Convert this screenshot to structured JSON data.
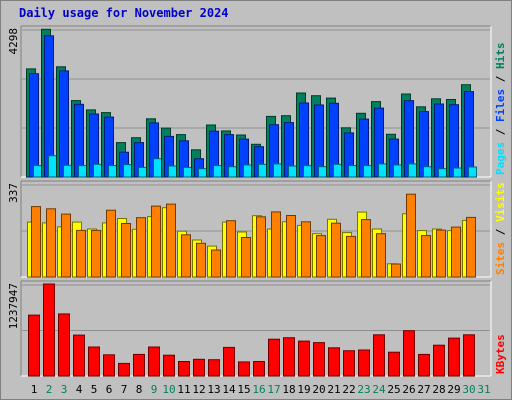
{
  "title": "Daily usage for November 2024",
  "colors": {
    "background": "#c0c0c0",
    "plot_bg": "#c0c0c0",
    "hits": "#00805c",
    "files": "#0040ff",
    "pages": "#00e0ff",
    "visits": "#ffff00",
    "sites": "#ff8000",
    "kbytes": "#ff0000",
    "weekend": "#00805c",
    "weekday": "#000000"
  },
  "x_labels": [
    "1",
    "2",
    "3",
    "4",
    "5",
    "6",
    "7",
    "8",
    "9",
    "10",
    "11",
    "12",
    "13",
    "14",
    "15",
    "16",
    "17",
    "18",
    "19",
    "20",
    "21",
    "22",
    "23",
    "24",
    "25",
    "26",
    "27",
    "28",
    "29",
    "30"
  ],
  "weekend_days": [
    2,
    3,
    9,
    10,
    16,
    17,
    23,
    24,
    30
  ],
  "extra_axis_label": "31",
  "chart_data": [
    {
      "type": "bar",
      "name": "hits-files-pages",
      "ymax": 4298,
      "ymax_label": "4298",
      "legend": [
        "Pages",
        "Files",
        "Hits"
      ],
      "legend_separator": " / ",
      "series": [
        {
          "name": "Hits",
          "values": [
            3140,
            4290,
            3200,
            2220,
            1950,
            1870,
            1000,
            1140,
            1690,
            1420,
            1230,
            790,
            1510,
            1340,
            1220,
            950,
            1760,
            1780,
            2440,
            2360,
            2290,
            1430,
            1850,
            2190,
            1240,
            2410,
            2040,
            2270,
            2250,
            2680
          ]
        },
        {
          "name": "Files",
          "values": [
            3000,
            4100,
            3080,
            2110,
            1830,
            1740,
            720,
            1000,
            1570,
            1180,
            1050,
            530,
            1330,
            1230,
            1100,
            880,
            1520,
            1580,
            2150,
            2090,
            2140,
            1280,
            1680,
            2000,
            1100,
            2220,
            1900,
            2120,
            2100,
            2480
          ]
        },
        {
          "name": "Pages",
          "values": [
            330,
            620,
            340,
            330,
            370,
            330,
            360,
            280,
            530,
            320,
            280,
            240,
            330,
            300,
            350,
            370,
            380,
            320,
            330,
            300,
            370,
            330,
            330,
            380,
            350,
            380,
            300,
            240,
            260,
            290
          ]
        }
      ]
    },
    {
      "type": "bar",
      "name": "visits-sites",
      "ymax": 337,
      "ymax_label": "337",
      "legend": [
        "Sites",
        "Visits"
      ],
      "legend_separator": " / ",
      "series": [
        {
          "name": "Visits",
          "values": [
            199,
            196,
            182,
            199,
            174,
            196,
            212,
            173,
            219,
            251,
            166,
            134,
            112,
            199,
            163,
            222,
            174,
            200,
            187,
            157,
            209,
            161,
            235,
            174,
            48,
            229,
            168,
            174,
            168,
            205
          ]
        },
        {
          "name": "Sites",
          "values": [
            255,
            247,
            228,
            169,
            169,
            242,
            194,
            215,
            257,
            264,
            153,
            122,
            98,
            204,
            143,
            218,
            236,
            223,
            200,
            150,
            195,
            147,
            208,
            157,
            47,
            300,
            150,
            170,
            181,
            216
          ]
        }
      ]
    },
    {
      "type": "bar",
      "name": "kbytes",
      "ymax": 1237947,
      "ymax_label": "1237947",
      "legend": [
        "KBytes"
      ],
      "legend_separator": "",
      "series": [
        {
          "name": "KBytes",
          "values": [
            820000,
            1237947,
            835000,
            550000,
            390000,
            285000,
            170000,
            290000,
            390000,
            280000,
            195000,
            225000,
            220000,
            385000,
            190000,
            195000,
            495000,
            515000,
            470000,
            450000,
            380000,
            340000,
            350000,
            555000,
            320000,
            610000,
            290000,
            415000,
            510000,
            555000
          ]
        }
      ]
    }
  ]
}
